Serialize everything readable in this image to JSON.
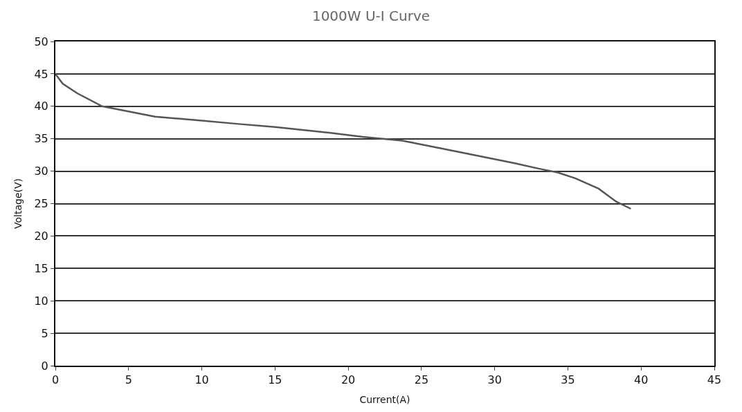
{
  "chart_data": {
    "type": "line",
    "title": "1000W U-I Curve",
    "xlabel": "Current(A)",
    "ylabel": "Voltage(V)",
    "series": [
      {
        "color": "#555555",
        "x": [
          0,
          0.5,
          1.5,
          3.2,
          5,
          6.8,
          10,
          12.4,
          15,
          18.8,
          21,
          23.7,
          26.6,
          29,
          31.4,
          33,
          34.3,
          35.5,
          37.1,
          38.3,
          39.3
        ],
        "values": [
          45,
          43.5,
          42,
          40,
          39.2,
          38.4,
          37.8,
          37.3,
          36.8,
          35.9,
          35.3,
          34.7,
          33.4,
          32.3,
          31.2,
          30.4,
          29.8,
          28.9,
          27.3,
          25.3,
          24.2
        ]
      }
    ],
    "xlim": [
      0,
      45
    ],
    "xticks": [
      0,
      5,
      10,
      15,
      20,
      25,
      30,
      35,
      40,
      45
    ],
    "ylim": [
      0,
      50
    ],
    "yticks": [
      0,
      5,
      10,
      15,
      20,
      25,
      30,
      35,
      40,
      45,
      50
    ],
    "grid": "y",
    "marker": "none",
    "line_style": "solid"
  }
}
